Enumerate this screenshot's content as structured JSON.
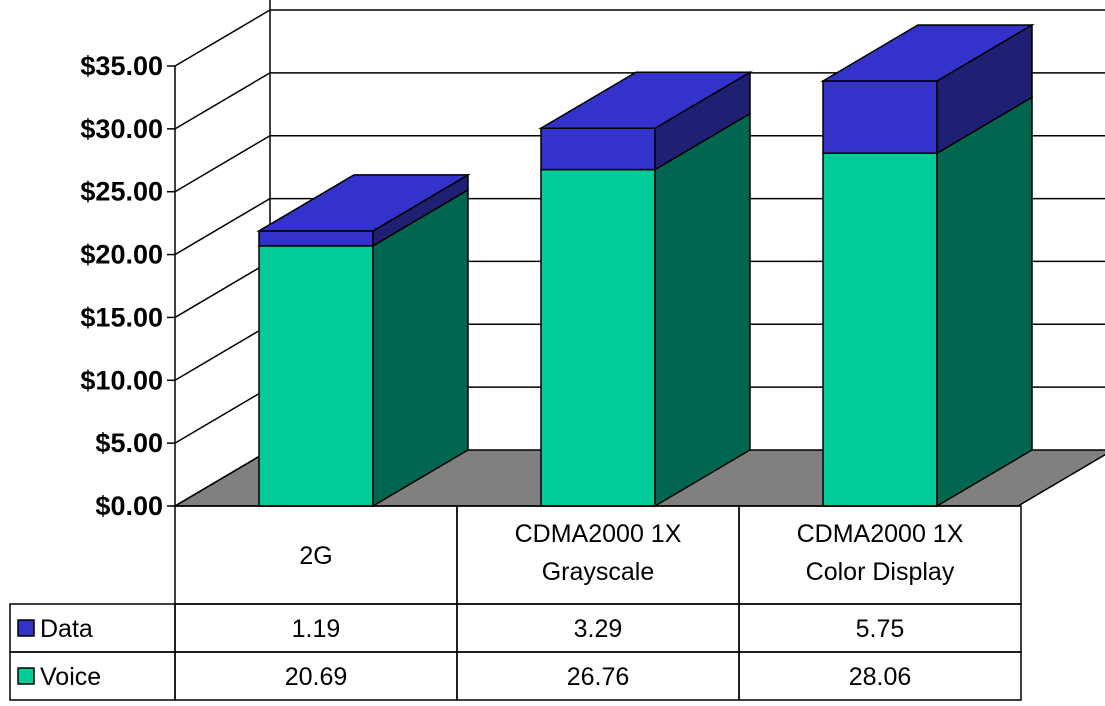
{
  "chart_data": {
    "type": "bar",
    "stacked": true,
    "three_d": true,
    "categories": [
      [
        "2G"
      ],
      [
        "CDMA2000 1X",
        "Grayscale"
      ],
      [
        "CDMA2000 1X",
        "Color Display"
      ]
    ],
    "series": [
      {
        "name": "Voice",
        "values": [
          20.69,
          26.76,
          28.06
        ],
        "color": "#00CC99",
        "side_color": "#006650"
      },
      {
        "name": "Data",
        "values": [
          1.19,
          3.29,
          5.75
        ],
        "color": "#3333CC",
        "side_color": "#1F1F73"
      }
    ],
    "y_tick_labels": [
      "$0.00",
      "$5.00",
      "$10.00",
      "$15.00",
      "$20.00",
      "$25.00",
      "$30.00",
      "$35.00"
    ],
    "ylim": [
      0,
      35
    ],
    "grid": true,
    "floor_color": "#808080",
    "data_table": true,
    "legend_placement": "data-table"
  }
}
